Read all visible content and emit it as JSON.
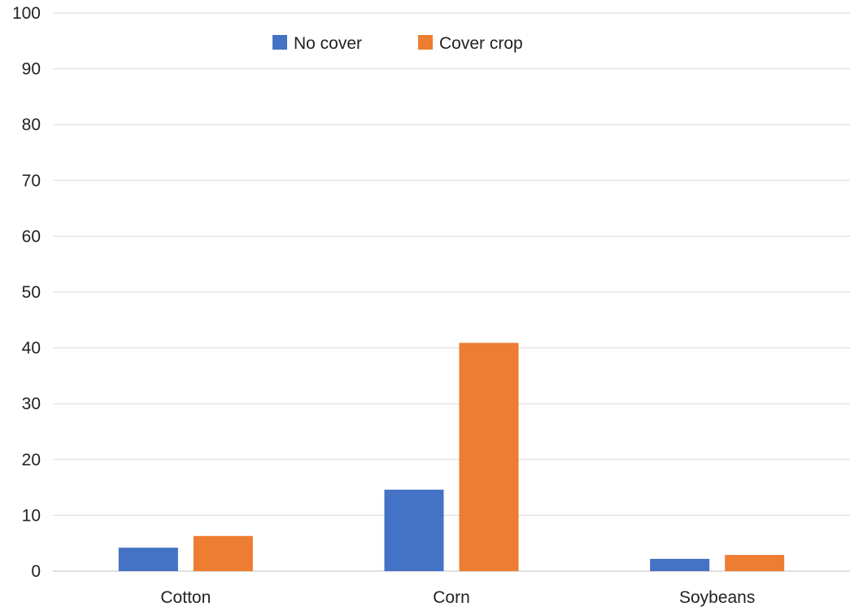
{
  "chart_data": {
    "type": "bar",
    "title": "",
    "xlabel": "",
    "ylabel": "",
    "categories": [
      "Cotton",
      "Corn",
      "Soybeans"
    ],
    "series": [
      {
        "name": "No cover",
        "color": "#4472c4",
        "values": [
          4.2,
          14.6,
          2.2
        ]
      },
      {
        "name": "Cover crop",
        "color": "#ed7d31",
        "values": [
          6.3,
          40.9,
          2.9
        ]
      }
    ],
    "ylim": [
      0,
      100
    ],
    "yticks": [
      "0",
      "10",
      "20",
      "30",
      "40",
      "50",
      "60",
      "70",
      "80",
      "90",
      "100"
    ],
    "grid": true,
    "legend_position": "top-center"
  }
}
